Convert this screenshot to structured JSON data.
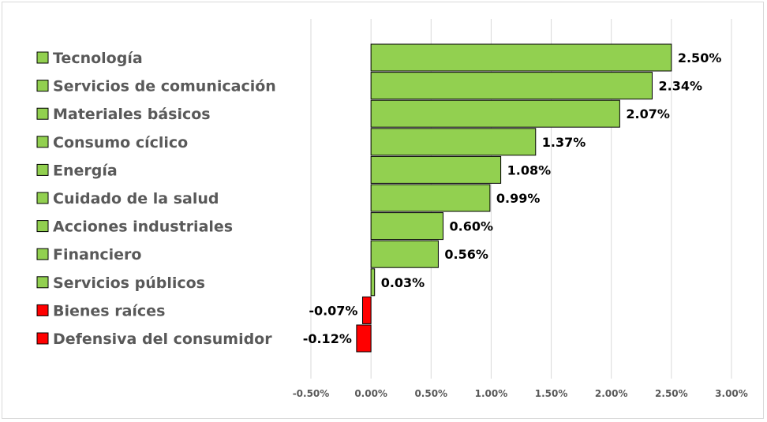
{
  "chart_data": {
    "type": "bar",
    "orientation": "horizontal",
    "title": "",
    "xlabel": "",
    "ylabel": "",
    "categories": [
      "Tecnología",
      "Servicios de comunicación",
      "Materiales básicos",
      "Consumo cíclico",
      "Energía",
      "Cuidado de la salud",
      "Acciones industriales",
      "Financiero",
      "Servicios públicos",
      "Bienes raíces",
      "Defensiva del consumidor"
    ],
    "values": [
      2.5,
      2.34,
      2.07,
      1.37,
      1.08,
      0.99,
      0.6,
      0.56,
      0.03,
      -0.07,
      -0.12
    ],
    "data_labels": [
      "2.50%",
      "2.34%",
      "2.07%",
      "1.37%",
      "1.08%",
      "0.99%",
      "0.60%",
      "0.56%",
      "0.03%",
      "-0.07%",
      "-0.12%"
    ],
    "xlim": [
      -0.5,
      3.0
    ],
    "x_ticks": [
      -0.5,
      0.0,
      0.5,
      1.0,
      1.5,
      2.0,
      2.5,
      3.0
    ],
    "x_tick_labels": [
      "-0.50%",
      "0.00%",
      "0.50%",
      "1.00%",
      "1.50%",
      "2.00%",
      "2.50%",
      "3.00%"
    ],
    "grid": "vertical",
    "legend": "left",
    "colors": {
      "positive": "#92d050",
      "negative": "#ff0000",
      "bar_border": "#000000",
      "grid": "#d9d9d9",
      "label_text": "#595959"
    }
  }
}
